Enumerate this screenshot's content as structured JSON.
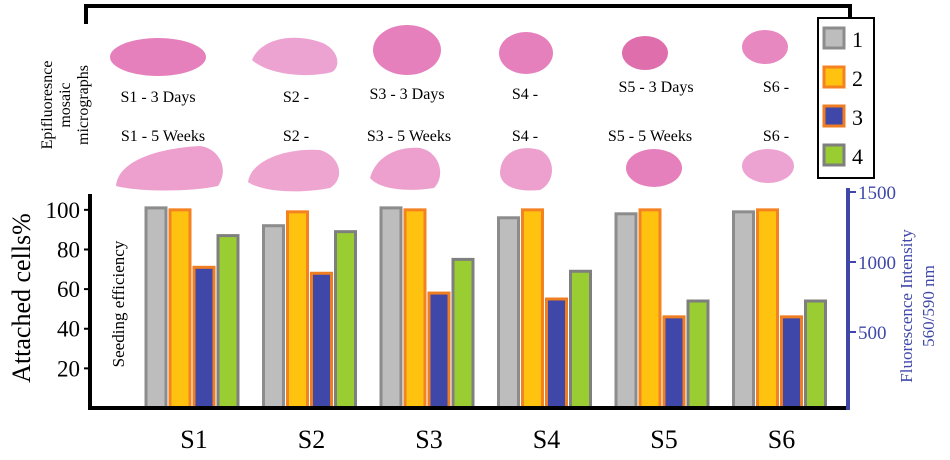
{
  "micrographs": {
    "side_label": [
      "Epifluoresnce",
      "mosaic",
      "micrographs"
    ],
    "row1_labels": [
      "S1 - 3 Days",
      "S2 -",
      "S3 - 3 Days",
      "S4 -",
      "S5 - 3 Days",
      "S6 -"
    ],
    "row2_labels": [
      "S1 - 5 Weeks",
      "S2 -",
      "S3 - 5 Weeks",
      "S4 -",
      "S5 - 5 Weeks",
      "S6 -"
    ]
  },
  "colors": {
    "s1_fill": "#bdbdbd",
    "s1_stroke": "#8c8c8c",
    "s2_fill": "#ffc20e",
    "s2_stroke": "#f58220",
    "s3_fill": "#3f48a8",
    "s3_stroke": "#ef7d22",
    "s4_fill": "#9acd32",
    "s4_stroke": "#7f7f7f",
    "right_axis": "#3f48a8",
    "tissue": "#e26ab0"
  },
  "chart_data": {
    "type": "bar",
    "categories": [
      "S1",
      "S2",
      "S3",
      "S4",
      "S5",
      "S6"
    ],
    "series": [
      {
        "name": "1",
        "values": [
          101,
          92,
          101,
          96,
          98,
          99
        ]
      },
      {
        "name": "2",
        "values": [
          100,
          99,
          100,
          100,
          100,
          100
        ]
      },
      {
        "name": "3",
        "values": [
          71,
          68,
          58,
          55,
          46,
          46
        ]
      },
      {
        "name": "4",
        "values": [
          87,
          89,
          75,
          69,
          54,
          54
        ]
      }
    ],
    "ylabel": "Attached cells%",
    "ylabel_inner": "Seeding efficiency",
    "yticks": [
      20,
      40,
      60,
      80,
      100
    ],
    "ylim": [
      0,
      108
    ],
    "y2label_line1": "Fluorescence Intensity",
    "y2label_line2": "560/590 nm",
    "y2ticks": [
      "500",
      "1000",
      "1500"
    ],
    "legend_position": "top-right"
  }
}
